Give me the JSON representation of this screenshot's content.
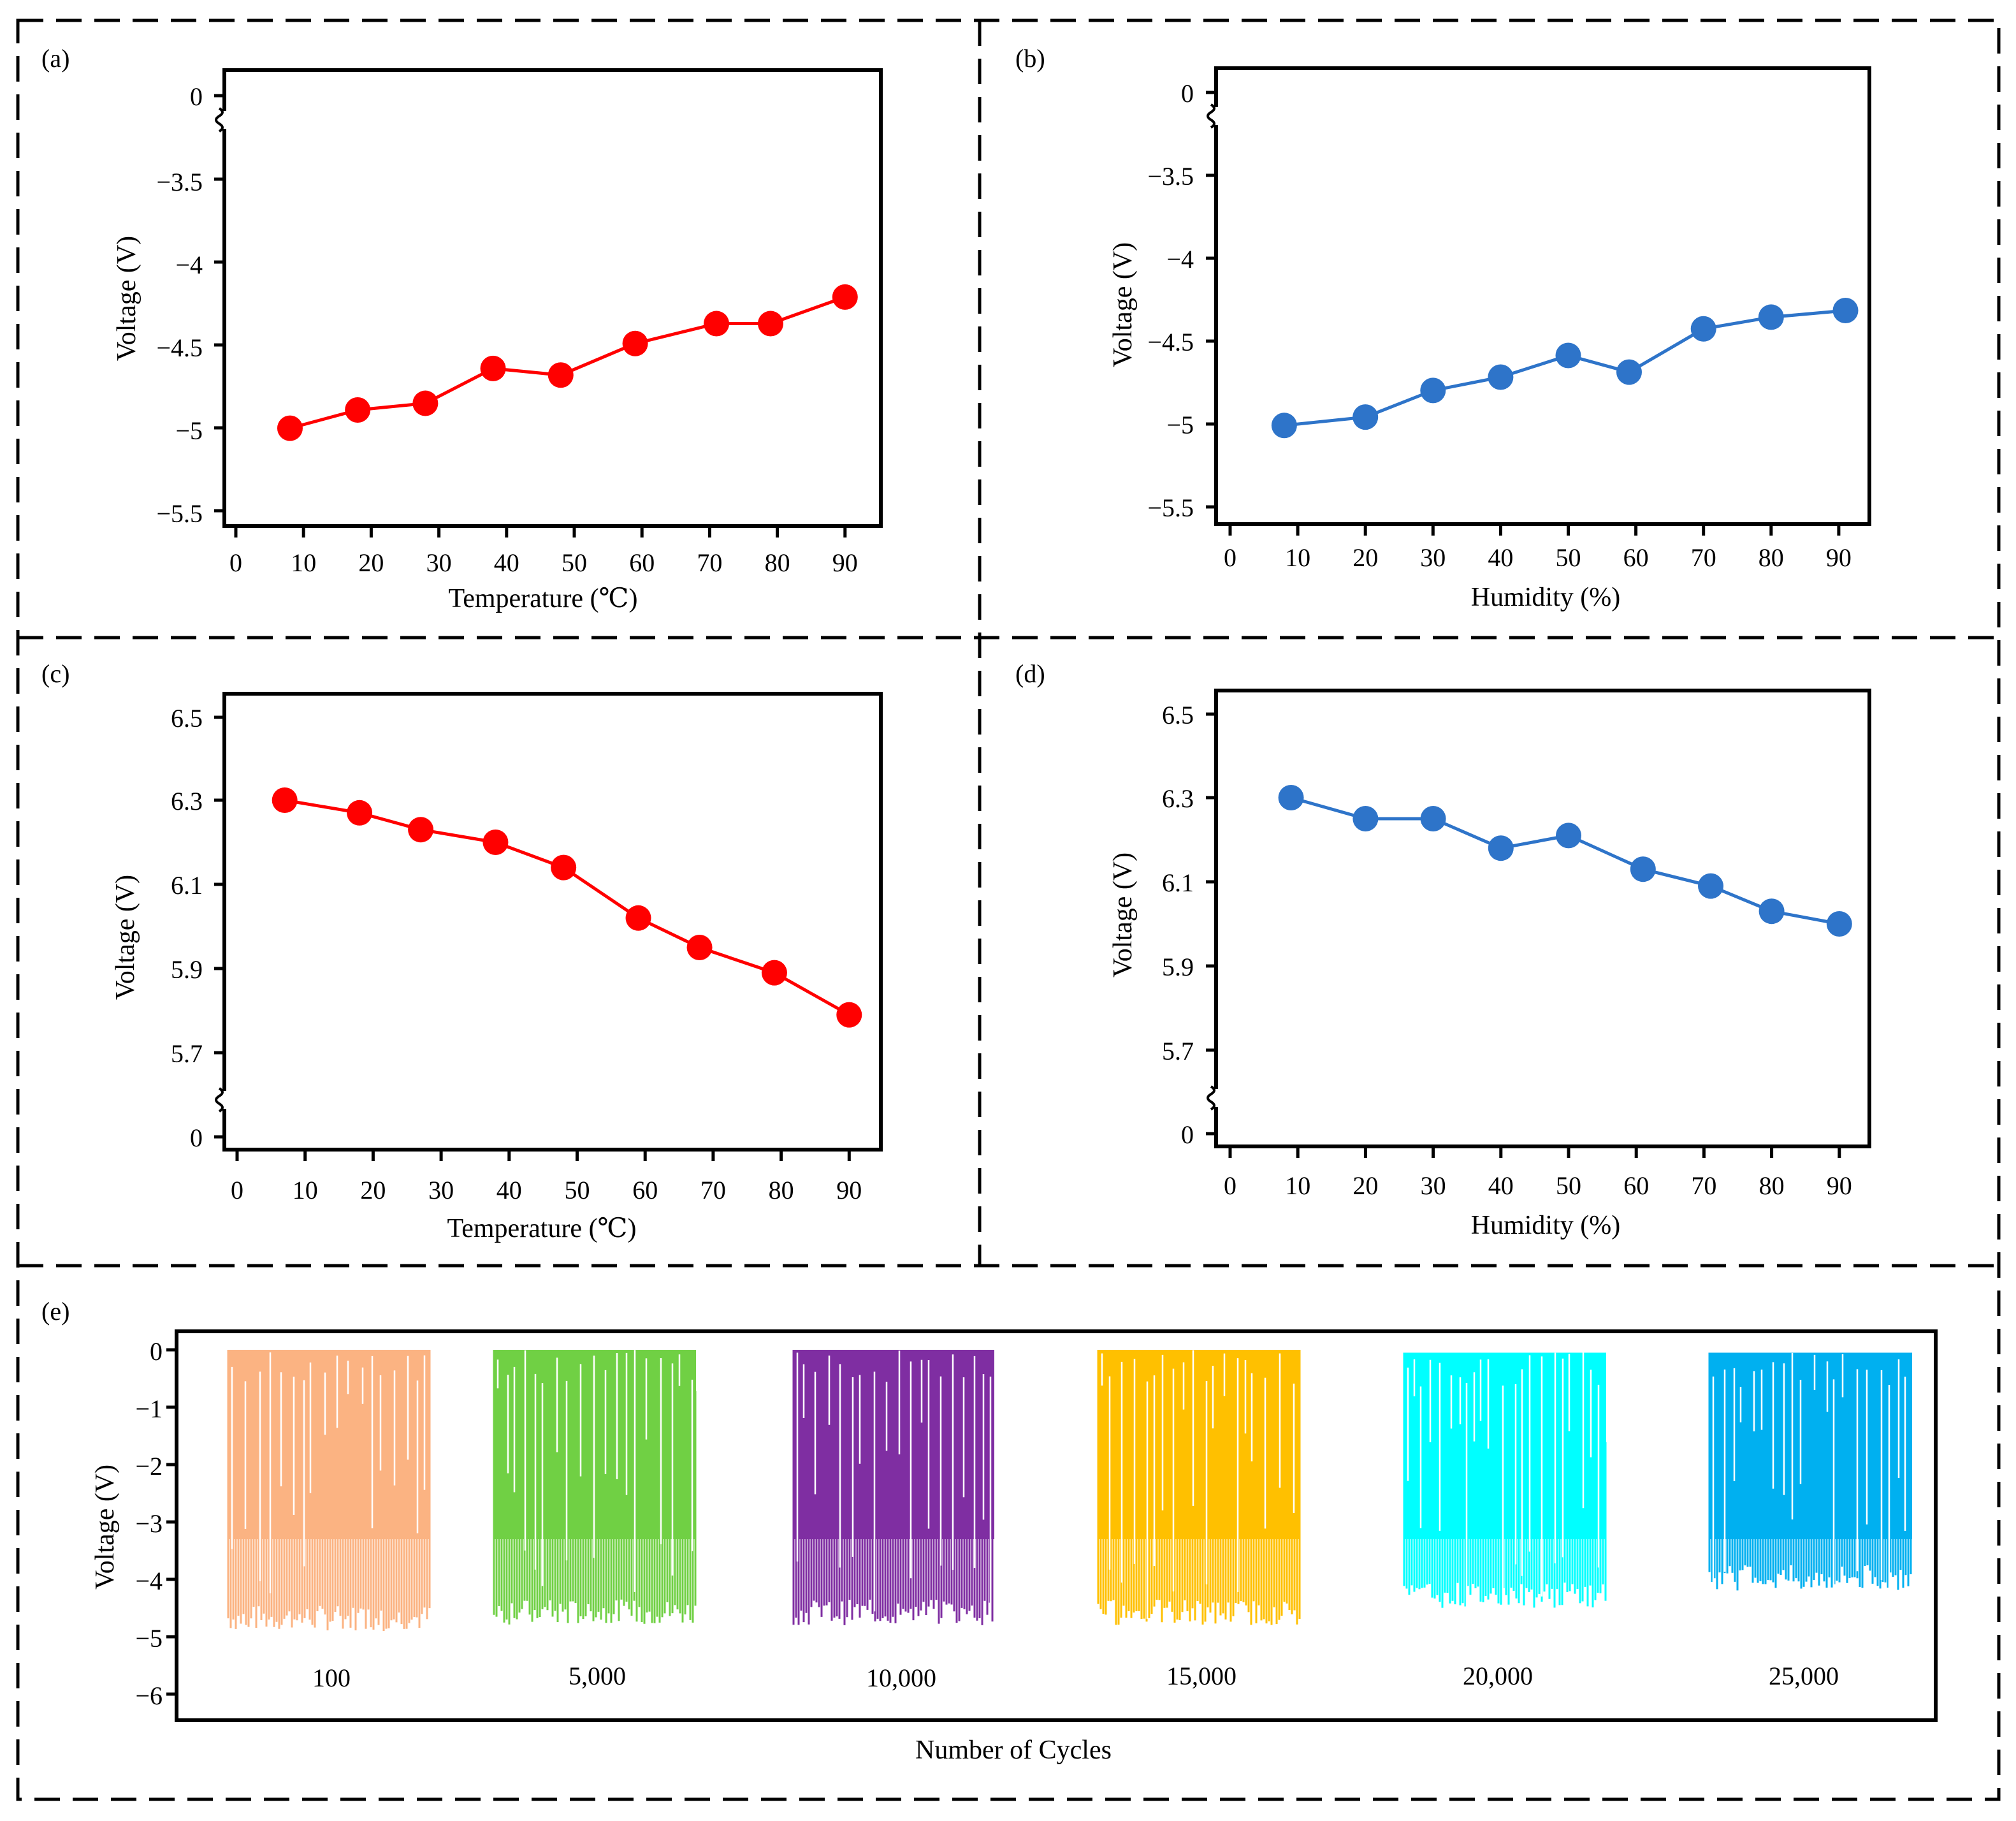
{
  "figure": {
    "panels": [
      "(a)",
      "(b)",
      "(c)",
      "(d)",
      "(e)"
    ]
  },
  "chart_data": [
    {
      "id": "a",
      "type": "line",
      "panel_label": "(a)",
      "xlabel": "Temperature (℃)",
      "ylabel": "Voltage (V)",
      "xticks": [
        "0",
        "10",
        "20",
        "30",
        "40",
        "50",
        "60",
        "70",
        "80",
        "90"
      ],
      "xlim": [
        -2,
        95
      ],
      "yticks": [
        "0",
        "−3.5",
        "−4",
        "−4.5",
        "−5",
        "−5.5"
      ],
      "y_axis_break": true,
      "color": "#ff0000",
      "series": [
        {
          "x": [
            8,
            18,
            28,
            38,
            48,
            59,
            71,
            79,
            90
          ],
          "y": [
            -5.01,
            -4.9,
            -4.86,
            -4.65,
            -4.69,
            -4.5,
            -4.38,
            -4.38,
            -4.22
          ]
        }
      ]
    },
    {
      "id": "b",
      "type": "line",
      "panel_label": "(b)",
      "xlabel": "Humidity (%)",
      "ylabel": "Voltage (V)",
      "xticks": [
        "0",
        "10",
        "20",
        "30",
        "40",
        "50",
        "60",
        "70",
        "80",
        "90"
      ],
      "xlim": [
        -2,
        95
      ],
      "yticks": [
        "0",
        "−3.5",
        "−4",
        "−4.5",
        "−5",
        "−5.5"
      ],
      "y_axis_break": true,
      "color": "#2e74c9",
      "series": [
        {
          "x": [
            8,
            20,
            30,
            40,
            50,
            59,
            70,
            80,
            91
          ],
          "y": [
            -5.01,
            -4.96,
            -4.8,
            -4.72,
            -4.59,
            -4.69,
            -4.43,
            -4.36,
            -4.32
          ]
        }
      ]
    },
    {
      "id": "c",
      "type": "line",
      "panel_label": "(c)",
      "xlabel": "Temperature (℃)",
      "ylabel": "Voltage (V)",
      "xticks": [
        "0",
        "10",
        "20",
        "30",
        "40",
        "50",
        "60",
        "70",
        "80",
        "90"
      ],
      "xlim": [
        -2,
        95
      ],
      "yticks": [
        "6.5",
        "6.3",
        "6.1",
        "5.9",
        "5.7",
        "0"
      ],
      "y_axis_break": true,
      "color": "#ff0000",
      "series": [
        {
          "x": [
            7,
            18,
            27,
            38,
            48,
            59,
            68,
            79,
            90
          ],
          "y": [
            6.3,
            6.27,
            6.23,
            6.2,
            6.14,
            6.02,
            5.95,
            5.89,
            5.79
          ]
        }
      ]
    },
    {
      "id": "d",
      "type": "line",
      "panel_label": "(d)",
      "xlabel": "Humidity (%)",
      "ylabel": "Voltage (V)",
      "xticks": [
        "0",
        "10",
        "20",
        "30",
        "40",
        "50",
        "60",
        "70",
        "80",
        "90"
      ],
      "xlim": [
        -2,
        95
      ],
      "yticks": [
        "6.5",
        "6.3",
        "6.1",
        "5.9",
        "5.7",
        "0"
      ],
      "y_axis_break": true,
      "color": "#2e74c9",
      "series": [
        {
          "x": [
            9,
            20,
            30,
            40,
            50,
            61,
            71,
            80,
            90
          ],
          "y": [
            6.3,
            6.25,
            6.25,
            6.18,
            6.21,
            6.13,
            6.09,
            6.03,
            6.0
          ]
        }
      ]
    },
    {
      "id": "e",
      "type": "line",
      "panel_label": "(e)",
      "xlabel": "Number of Cycles",
      "ylabel": "Voltage (V)",
      "yticks": [
        "0",
        "−1",
        "−2",
        "−3",
        "−4",
        "−5",
        "−6"
      ],
      "ylim": [
        -6.5,
        0.2
      ],
      "series": [
        {
          "name": "100",
          "color": "#fbb382",
          "min": -4.9,
          "max": 0
        },
        {
          "name": "5,000",
          "color": "#70d044",
          "min": -4.8,
          "max": 0
        },
        {
          "name": "10,000",
          "color": "#7f2ea2",
          "min": -4.8,
          "max": 0
        },
        {
          "name": "15,000",
          "color": "#ffc000",
          "min": -4.8,
          "max": 0
        },
        {
          "name": "20,000",
          "color": "#00ffff",
          "min": -4.5,
          "max": -0.05
        },
        {
          "name": "25,000",
          "color": "#00b0f0",
          "min": -4.2,
          "max": -0.05
        }
      ]
    }
  ]
}
